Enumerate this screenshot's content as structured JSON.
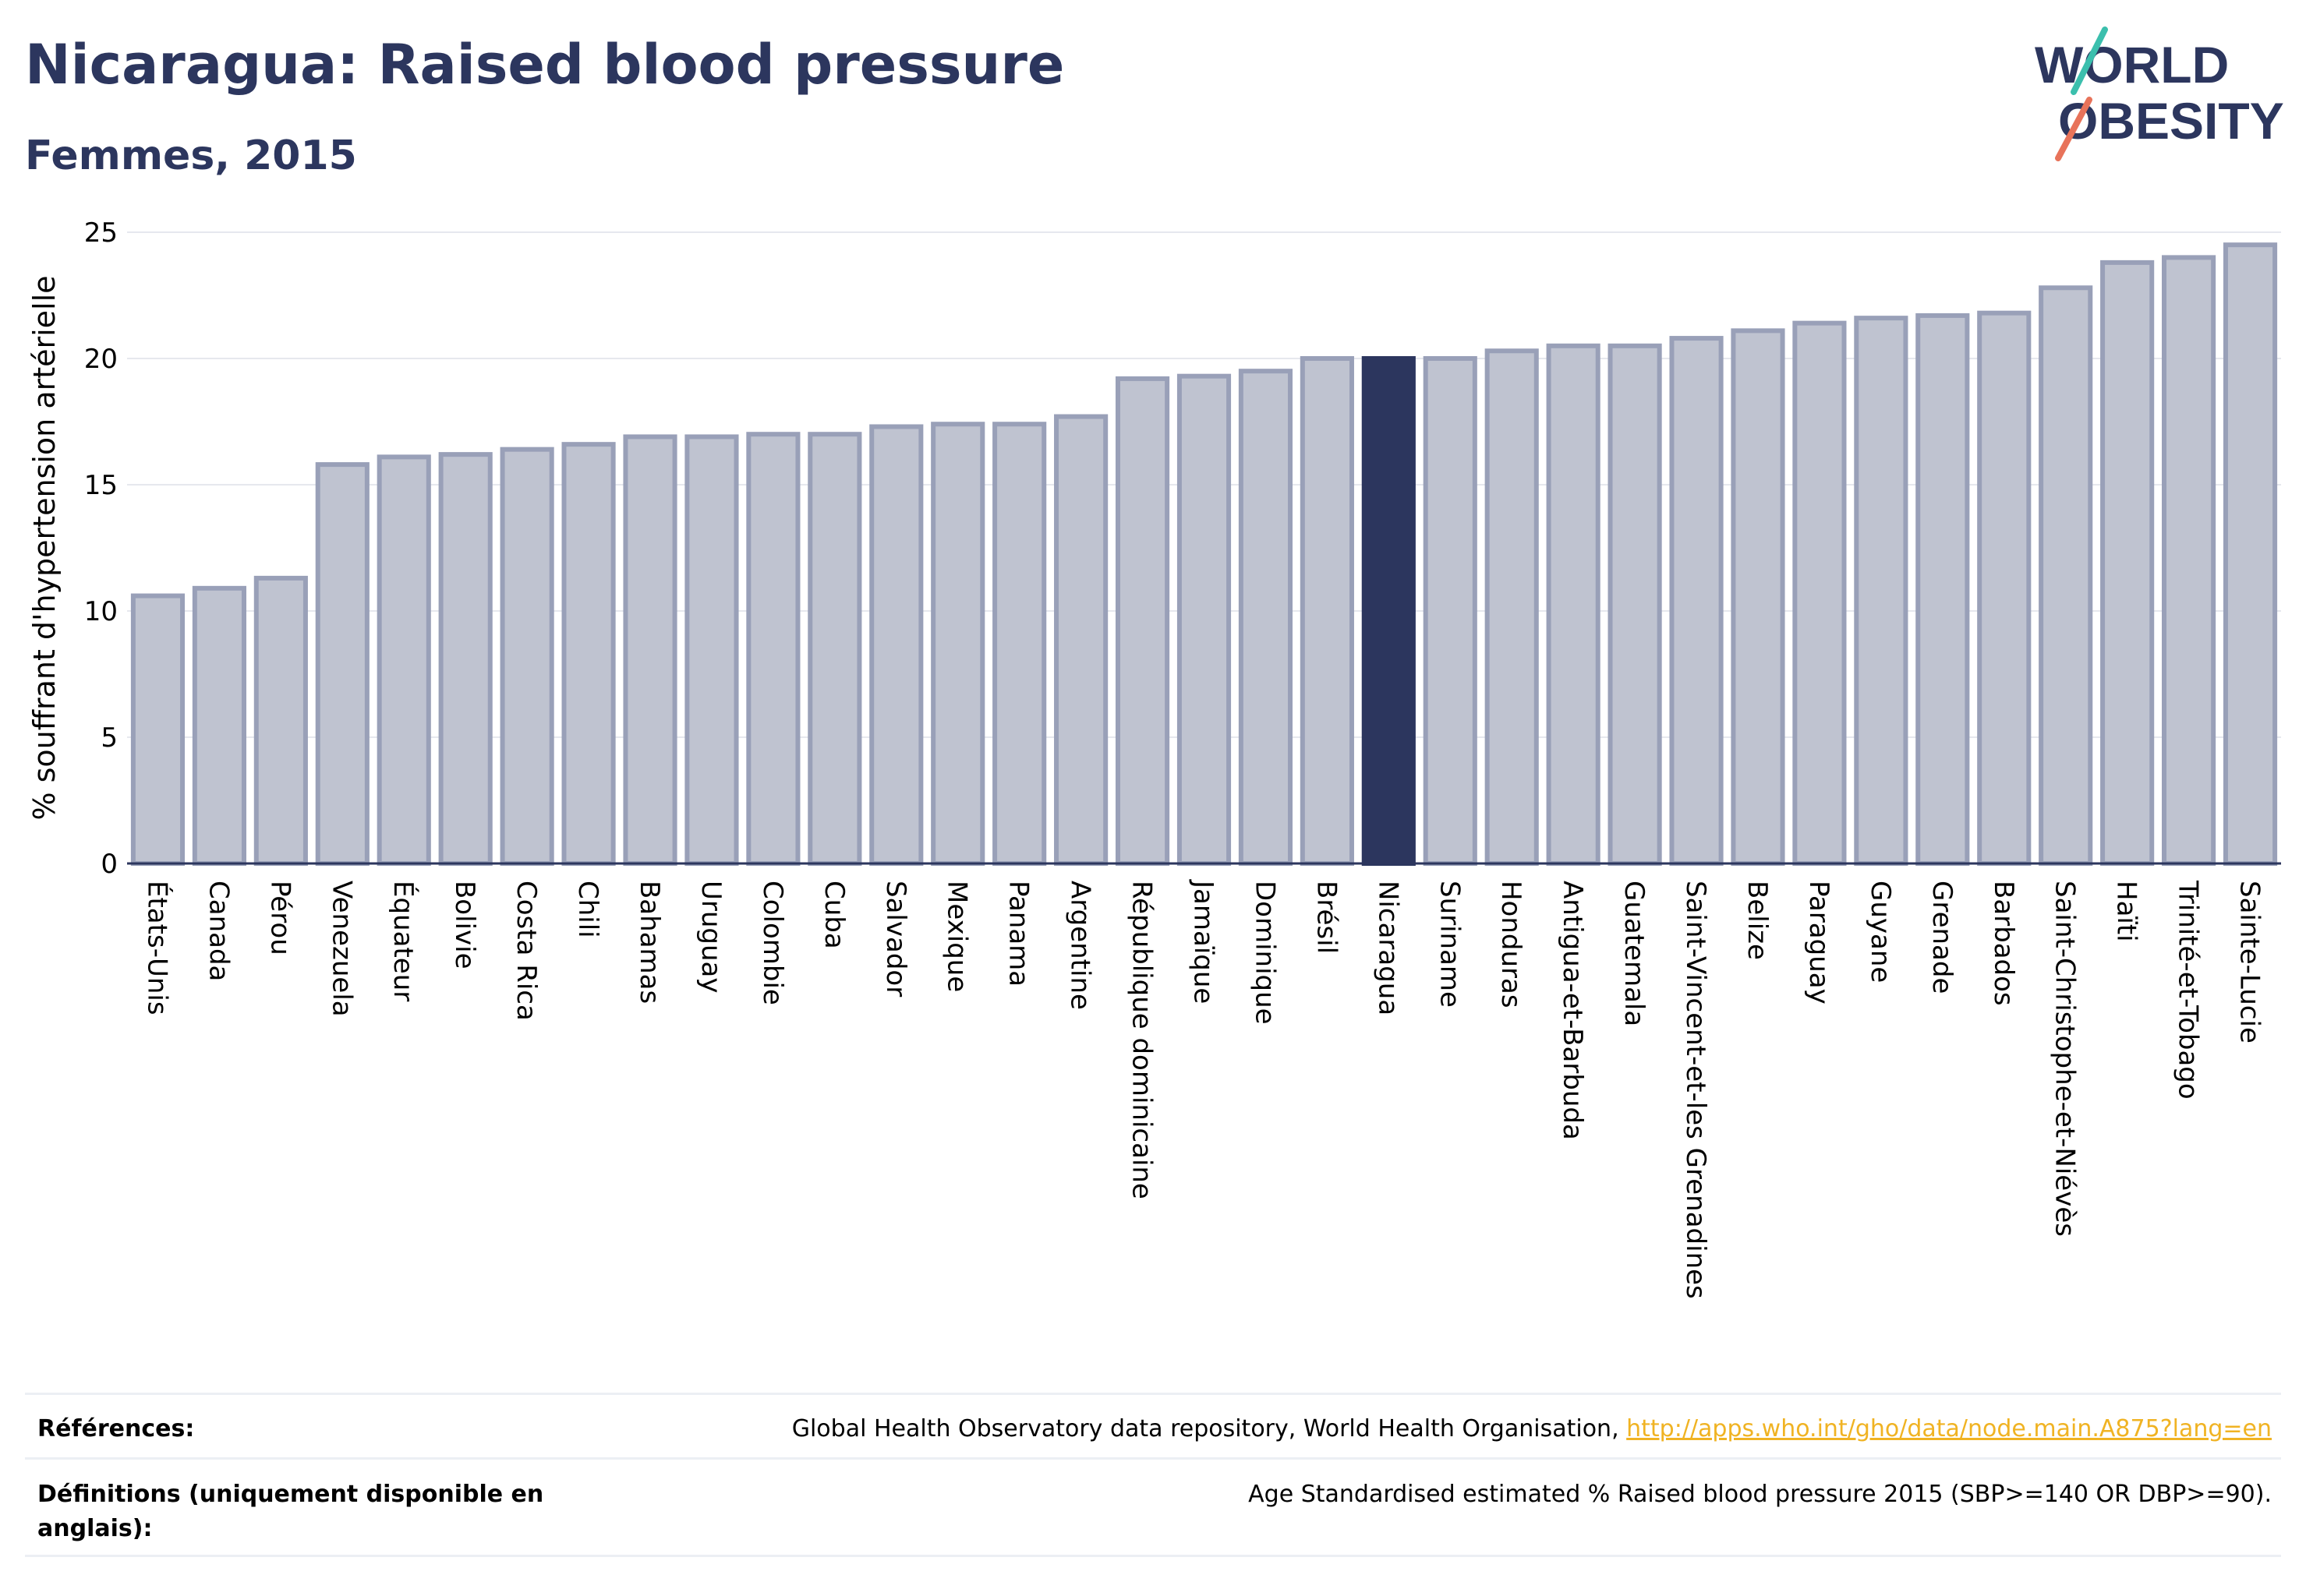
{
  "header": {
    "title": "Nicaragua: Raised blood pressure",
    "subtitle": "Femmes, 2015"
  },
  "logo": {
    "line1": "WORLD",
    "line2": "OBESITY",
    "accent_colors": [
      "#3bbfad",
      "#e8735a"
    ]
  },
  "colors": {
    "bar": "#bfc3d0",
    "bar_border": "#99a0b8",
    "highlight": "#2c365e",
    "axis_text": "#000000",
    "grid": "#e6e8ee",
    "link": "#f0b323"
  },
  "chart_data": {
    "type": "bar",
    "ylabel": "% souffrant d'hypertension artérielle",
    "ylim": [
      0,
      25
    ],
    "yticks": [
      0,
      5,
      10,
      15,
      20,
      25
    ],
    "highlight": "Nicaragua",
    "categories": [
      "États-Unis",
      "Canada",
      "Pérou",
      "Venezuela",
      "Équateur",
      "Bolivie",
      "Costa Rica",
      "Chili",
      "Bahamas",
      "Uruguay",
      "Colombie",
      "Cuba",
      "Salvador",
      "Mexique",
      "Panama",
      "Argentine",
      "République dominicaine",
      "Jamaïque",
      "Dominique",
      "Brésil",
      "Nicaragua",
      "Suriname",
      "Honduras",
      "Antigua-et-Barbuda",
      "Guatemala",
      "Saint-Vincent-et-les Grenadines",
      "Belize",
      "Paraguay",
      "Guyane",
      "Grenade",
      "Barbados",
      "Saint-Christophe-et-Niévès",
      "Haïti",
      "Trinité-et-Tobago",
      "Sainte-Lucie"
    ],
    "values": [
      10.6,
      10.9,
      11.3,
      15.8,
      16.1,
      16.2,
      16.4,
      16.6,
      16.9,
      16.9,
      17.0,
      17.0,
      17.3,
      17.4,
      17.4,
      17.7,
      19.2,
      19.3,
      19.5,
      20.0,
      20.0,
      20.0,
      20.3,
      20.5,
      20.5,
      20.8,
      21.1,
      21.4,
      21.6,
      21.7,
      21.8,
      22.8,
      23.8,
      24.0,
      24.5
    ]
  },
  "footer": {
    "references_label": "Références:",
    "references_text": "Global Health Observatory data repository, World Health Organisation, ",
    "references_link": "http://apps.who.int/gho/data/node.main.A875?lang=en",
    "definitions_label_line1": "Définitions (uniquement disponible en",
    "definitions_label_line2": "anglais):",
    "definitions_text": "Age Standardised estimated % Raised blood pressure 2015 (SBP>=140 OR DBP>=90)."
  }
}
